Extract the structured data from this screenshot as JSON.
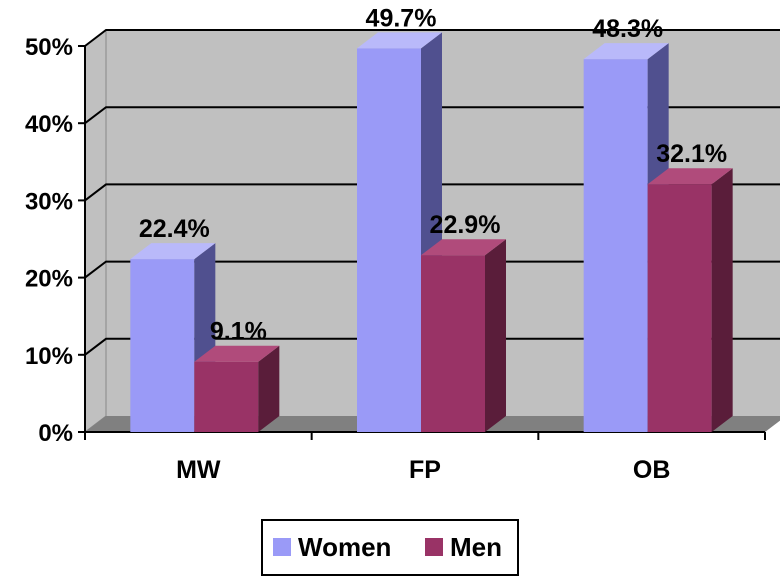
{
  "chart_data": {
    "type": "bar",
    "categories": [
      "MW",
      "FP",
      "OB"
    ],
    "series": [
      {
        "name": "Women",
        "values": [
          22.4,
          49.7,
          48.3
        ],
        "labels": [
          "22.4%",
          "49.7%",
          "48.3%"
        ]
      },
      {
        "name": "Men",
        "values": [
          9.1,
          22.9,
          32.1
        ],
        "labels": [
          "9.1%",
          "22.9%",
          "32.1%"
        ]
      }
    ],
    "ylim": [
      0,
      50
    ],
    "yticks": [
      {
        "value": 0,
        "label": "0%"
      },
      {
        "value": 10,
        "label": "10%"
      },
      {
        "value": 20,
        "label": "20%"
      },
      {
        "value": 30,
        "label": "30%"
      },
      {
        "value": 40,
        "label": "40%"
      },
      {
        "value": 50,
        "label": "50%"
      }
    ],
    "grid": true,
    "style": "3d-clustered-column",
    "legend_position": "bottom"
  },
  "colors": {
    "Women": {
      "front": "#9a9af7",
      "side": "#50508f",
      "top": "#b9b9fa"
    },
    "Men": {
      "front": "#993366",
      "side": "#5a1d3a",
      "top": "#b04b7b"
    },
    "wall": "#c0c0c0",
    "floor": "#808080",
    "grid": "#000000"
  }
}
